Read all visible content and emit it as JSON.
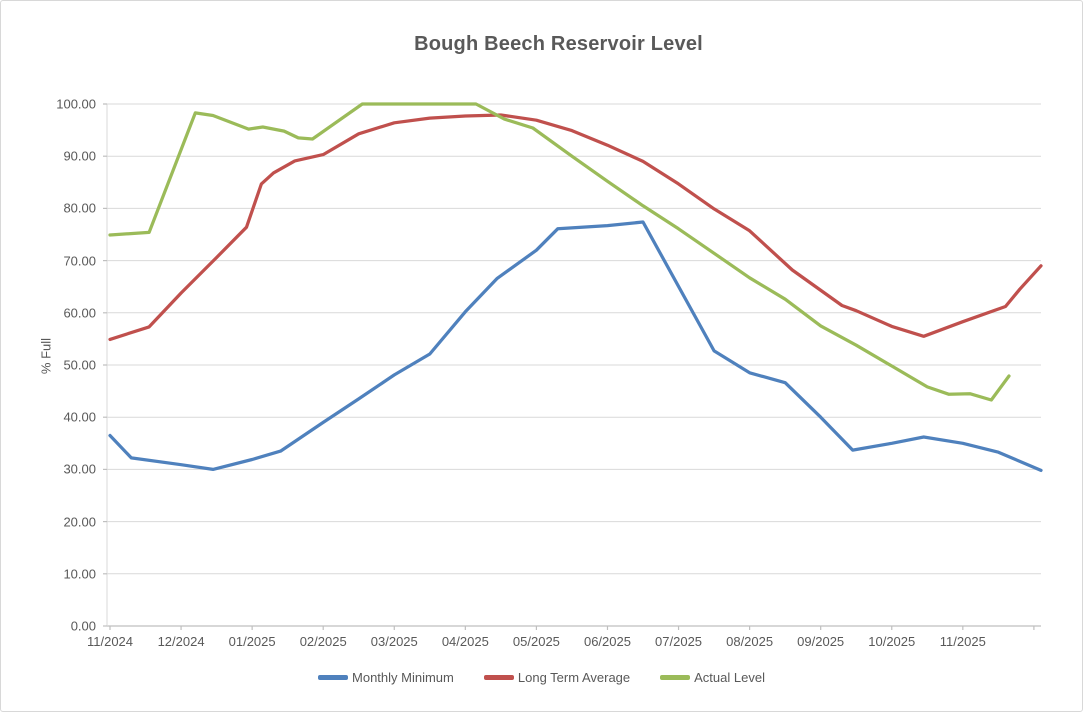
{
  "chart_data": {
    "type": "line",
    "title": "Bough Beech Reservoir Level",
    "xlabel": "",
    "ylabel": "% Full",
    "ylim": [
      0,
      100
    ],
    "y_tick_step": 10,
    "y_tick_labels": [
      "0.00",
      "10.00",
      "20.00",
      "30.00",
      "40.00",
      "50.00",
      "60.00",
      "70.00",
      "80.00",
      "90.00",
      "100.00"
    ],
    "x_unit": "months (offset from 11/2024, fractional = within-month date)",
    "x_tick_labels": [
      "11/2024",
      "12/2024",
      "01/2025",
      "02/2025",
      "03/2025",
      "04/2025",
      "05/2025",
      "06/2025",
      "07/2025",
      "08/2025",
      "09/2025",
      "10/2025",
      "11/2025"
    ],
    "x_domain_months": 13.1,
    "grid": true,
    "legend_position": "bottom",
    "series": [
      {
        "name": "Monthly Minimum",
        "color": "#4F81BD",
        "points": [
          [
            0,
            36.5
          ],
          [
            0.3,
            32.2
          ],
          [
            1,
            30.9
          ],
          [
            1.45,
            30.0
          ],
          [
            2,
            31.9
          ],
          [
            2.4,
            33.5
          ],
          [
            3,
            39.0
          ],
          [
            3.5,
            43.5
          ],
          [
            4,
            48.1
          ],
          [
            4.5,
            52.1
          ],
          [
            5,
            60.2
          ],
          [
            5.45,
            66.6
          ],
          [
            6,
            72.0
          ],
          [
            6.3,
            76.1
          ],
          [
            7,
            76.7
          ],
          [
            7.5,
            77.4
          ],
          [
            8.5,
            52.7
          ],
          [
            9,
            48.5
          ],
          [
            9.5,
            46.6
          ],
          [
            10,
            40.0
          ],
          [
            10.45,
            33.7
          ],
          [
            11,
            35.0
          ],
          [
            11.45,
            36.2
          ],
          [
            12,
            35.0
          ],
          [
            12.5,
            33.3
          ],
          [
            13.1,
            29.8
          ]
        ]
      },
      {
        "name": "Long Term Average",
        "color": "#C0504D",
        "points": [
          [
            0,
            54.9
          ],
          [
            0.55,
            57.3
          ],
          [
            1,
            63.8
          ],
          [
            1.5,
            70.6
          ],
          [
            1.92,
            76.4
          ],
          [
            2.13,
            84.7
          ],
          [
            2.3,
            86.8
          ],
          [
            2.6,
            89.1
          ],
          [
            3,
            90.3
          ],
          [
            3.5,
            94.3
          ],
          [
            4,
            96.4
          ],
          [
            4.5,
            97.3
          ],
          [
            5,
            97.7
          ],
          [
            5.5,
            97.9
          ],
          [
            6,
            96.9
          ],
          [
            6.5,
            94.9
          ],
          [
            7,
            92.1
          ],
          [
            7.5,
            89.0
          ],
          [
            8,
            84.7
          ],
          [
            8.5,
            79.9
          ],
          [
            9,
            75.7
          ],
          [
            9.6,
            68.2
          ],
          [
            10.3,
            61.4
          ],
          [
            10.5,
            60.4
          ],
          [
            11,
            57.4
          ],
          [
            11.45,
            55.5
          ],
          [
            12,
            58.3
          ],
          [
            12.6,
            61.2
          ],
          [
            12.8,
            64.5
          ],
          [
            13.1,
            69.0
          ]
        ]
      },
      {
        "name": "Actual Level",
        "color": "#9BBB59",
        "points": [
          [
            0,
            74.9
          ],
          [
            0.55,
            75.4
          ],
          [
            1.2,
            98.3
          ],
          [
            1.45,
            97.8
          ],
          [
            1.95,
            95.2
          ],
          [
            2.15,
            95.6
          ],
          [
            2.45,
            94.8
          ],
          [
            2.65,
            93.5
          ],
          [
            2.85,
            93.3
          ],
          [
            3.55,
            100
          ],
          [
            5.15,
            100
          ],
          [
            5.55,
            97.1
          ],
          [
            5.95,
            95.4
          ],
          [
            6.5,
            90.0
          ],
          [
            7,
            85.2
          ],
          [
            7.5,
            80.5
          ],
          [
            8,
            76.1
          ],
          [
            8.5,
            71.4
          ],
          [
            9,
            66.7
          ],
          [
            9.5,
            62.6
          ],
          [
            10,
            57.5
          ],
          [
            10.5,
            53.8
          ],
          [
            11,
            49.8
          ],
          [
            11.5,
            45.8
          ],
          [
            11.8,
            44.4
          ],
          [
            12.1,
            44.5
          ],
          [
            12.4,
            43.3
          ],
          [
            12.65,
            47.9
          ]
        ]
      }
    ],
    "colors": {
      "background": "#FFFFFF",
      "border": "#D8D8D8",
      "gridline": "#D9D9D9",
      "axis": "#BFBFBF",
      "text": "#595959"
    }
  }
}
